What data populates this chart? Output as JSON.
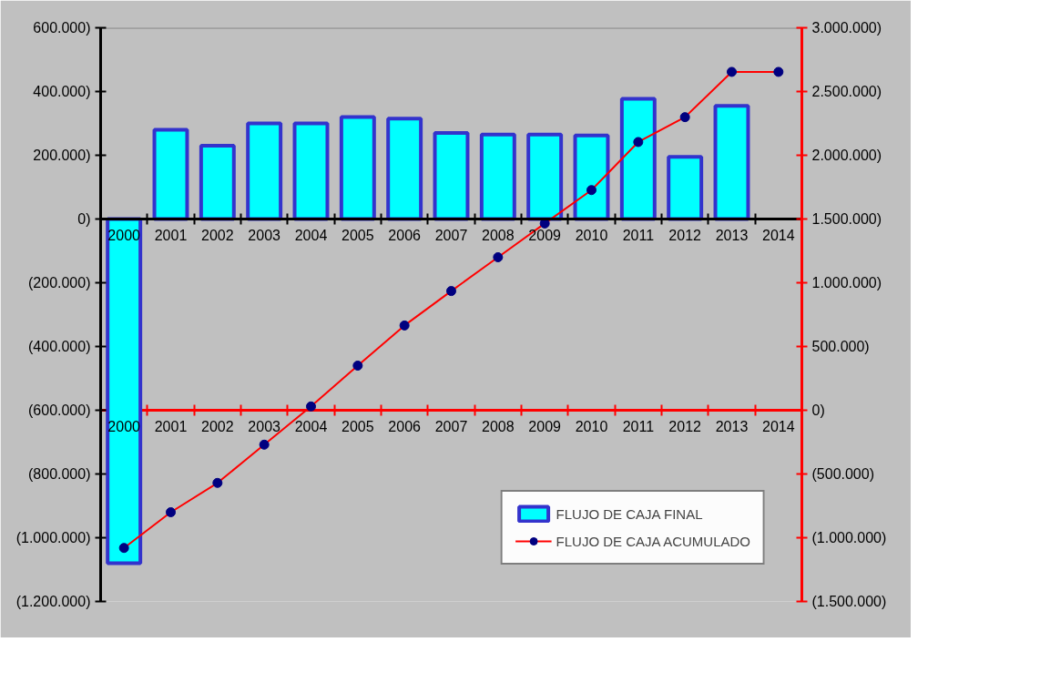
{
  "chart_data": {
    "type": "bar",
    "categories": [
      "2000",
      "2001",
      "2002",
      "2003",
      "2004",
      "2005",
      "2006",
      "2007",
      "2008",
      "2009",
      "2010",
      "2011",
      "2012",
      "2013",
      "2014"
    ],
    "series": [
      {
        "name": "FLUJO DE CAJA FINAL",
        "color": "#00ffff",
        "values": [
          -1080000,
          280000,
          230000,
          300000,
          300000,
          320000,
          315000,
          270000,
          265000,
          265000,
          262000,
          377000,
          195000,
          355000,
          null
        ]
      },
      {
        "name": "FLUJO DE CAJA ACUMULADO",
        "type": "line",
        "axis": "y2",
        "color": "#ff0000",
        "marker": "circle",
        "values": [
          -1080000,
          -800000,
          -570000,
          -270000,
          30000,
          350000,
          665000,
          935000,
          1200000,
          1465000,
          1727000,
          2104000,
          2299000,
          2654000,
          2654000
        ]
      }
    ],
    "ylim": [
      -1200000,
      600000
    ],
    "yticks": [
      {
        "value": 600000,
        "label": "600.000)"
      },
      {
        "value": 400000,
        "label": "400.000)"
      },
      {
        "value": 200000,
        "label": "200.000)"
      },
      {
        "value": 0,
        "label": "0)"
      },
      {
        "value": -200000,
        "label": "(200.000)"
      },
      {
        "value": -400000,
        "label": "(400.000)"
      },
      {
        "value": -600000,
        "label": "(600.000)"
      },
      {
        "value": -800000,
        "label": "(800.000)"
      },
      {
        "value": -1000000,
        "label": "(1.000.000)"
      },
      {
        "value": -1200000,
        "label": "(1.200.000)"
      }
    ],
    "y2lim": [
      -1500000,
      3000000
    ],
    "y2ticks": [
      {
        "value": 3000000,
        "label": "3.000.000)"
      },
      {
        "value": 2500000,
        "label": "2.500.000)"
      },
      {
        "value": 2000000,
        "label": "2.000.000)"
      },
      {
        "value": 1500000,
        "label": "1.500.000)"
      },
      {
        "value": 1000000,
        "label": "1.000.000)"
      },
      {
        "value": 500000,
        "label": "500.000)"
      },
      {
        "value": 0,
        "label": "0)"
      },
      {
        "value": -500000,
        "label": "(500.000)"
      },
      {
        "value": -1000000,
        "label": "(1.000.000)"
      },
      {
        "value": -1500000,
        "label": "(1.500.000)"
      }
    ],
    "ref_lines": [
      {
        "axis": "y2",
        "value": 0,
        "label": null,
        "color": "#ff0000"
      }
    ],
    "grid": false,
    "legend": "bottom right"
  }
}
